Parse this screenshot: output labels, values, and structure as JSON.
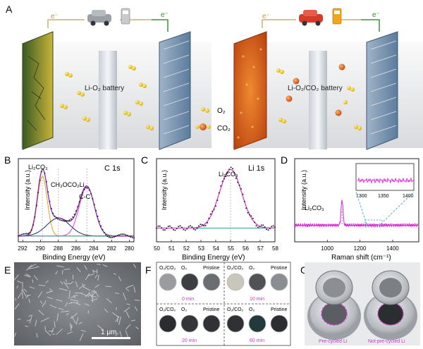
{
  "panels": {
    "A": {
      "label": "A",
      "left_battery_label": "Li-O₂ battery",
      "right_battery_label": "Li-O₂/CO₂ battery",
      "electron": "e⁻",
      "legend_o2": "O₂",
      "legend_co2": "CO₂"
    },
    "B": {
      "label": "B",
      "spectrum": "C 1s",
      "peak1": "Li₂CO₃",
      "peak2": "CH₃OCO₂Li",
      "peak3": "C-C",
      "xlabel": "Binding Energy (eV)",
      "ylabel": "Intensity (a.u.)",
      "ticks": [
        "292",
        "290",
        "288",
        "286",
        "284",
        "282",
        "280"
      ]
    },
    "C": {
      "label": "C",
      "spectrum": "Li 1s",
      "peak": "Li₂CO₃",
      "xlabel": "Binding Energy (eV)",
      "ylabel": "Intensity (a.u.)",
      "ticks": [
        "50",
        "51",
        "52",
        "53",
        "54",
        "55",
        "56",
        "57",
        "58"
      ]
    },
    "D": {
      "label": "D",
      "peak": "Li₂CO₃",
      "xlabel": "Raman shift (cm⁻¹)",
      "ylabel": "Intensity (a.u.)",
      "ticks": [
        "1000",
        "1200",
        "1400"
      ],
      "inset_ticks": [
        "1300",
        "1350",
        "1400"
      ]
    },
    "E": {
      "label": "E",
      "scale_bar": "1 μm"
    },
    "F": {
      "label": "F",
      "top_left": [
        "O₂/CO₂",
        "O₂",
        "Pristine"
      ],
      "top_right": [
        "O₂/CO₂",
        "O₂",
        "Pristine"
      ],
      "bottom_left": [
        "O₂/CO₂",
        "O₂",
        "Pristine"
      ],
      "bottom_right": [
        "O₂/CO₂",
        "O₂",
        "Pristine"
      ],
      "times": [
        "0 min",
        "10 min",
        "20 min",
        "60 min"
      ]
    },
    "G": {
      "label": "G",
      "left_caption": "Pre-cycled Li",
      "right_caption": "Not pre-cycled Li"
    }
  },
  "chart_data": [
    {
      "type": "line",
      "title": "C 1s",
      "xlabel": "Binding Energy (eV)",
      "ylabel": "Intensity (a.u.)",
      "xlim": [
        292.5,
        279.5
      ],
      "x_reversed": true,
      "series": [
        {
          "name": "Li₂CO₃",
          "x": [
            291.5,
            290.8,
            290.2,
            289.8,
            289.4,
            289.0,
            288.5,
            287.9,
            287.3,
            286.7,
            286.1,
            285.6,
            285.2,
            284.8,
            284.3,
            283.8,
            283.0,
            282.0,
            281.0,
            280.0
          ],
          "values": [
            0.12,
            0.35,
            0.8,
            0.97,
            0.88,
            0.66,
            0.52,
            0.49,
            0.52,
            0.58,
            0.66,
            0.7,
            0.71,
            0.68,
            0.57,
            0.4,
            0.2,
            0.08,
            0.04,
            0.03
          ]
        }
      ],
      "peaks_eV": [
        289.8,
        288.0,
        284.8
      ]
    },
    {
      "type": "line",
      "title": "Li 1s",
      "xlabel": "Binding Energy (eV)",
      "ylabel": "Intensity (a.u.)",
      "xlim": [
        50,
        58
      ],
      "series": [
        {
          "name": "Li₂CO₃",
          "x": [
            50,
            51,
            52,
            53,
            53.5,
            54,
            54.5,
            55,
            55.5,
            56,
            56.5,
            57,
            58
          ],
          "values": [
            0.12,
            0.12,
            0.13,
            0.18,
            0.3,
            0.55,
            0.82,
            0.95,
            0.84,
            0.55,
            0.3,
            0.16,
            0.12
          ]
        }
      ],
      "peak_eV": 55.0
    },
    {
      "type": "line",
      "xlabel": "Raman shift (cm⁻¹)",
      "ylabel": "Intensity (a.u.)",
      "xlim": [
        800,
        1560
      ],
      "series": [
        {
          "name": "Li₂CO₃",
          "x": [
            800,
            900,
            1000,
            1060,
            1080,
            1090,
            1100,
            1150,
            1200,
            1300,
            1400,
            1560
          ],
          "values": [
            0.2,
            0.2,
            0.2,
            0.21,
            0.3,
            0.52,
            0.28,
            0.21,
            0.2,
            0.2,
            0.2,
            0.2
          ]
        }
      ],
      "peak_cm": 1090,
      "inset_xlim": [
        1300,
        1400
      ]
    }
  ]
}
